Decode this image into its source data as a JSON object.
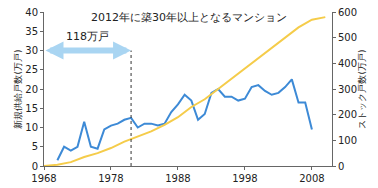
{
  "chart_data": {
    "type": "line",
    "title": "2012年に築30年以上となるマンション",
    "ylabel": "新規供給戸数(万戸)",
    "y2label": "ストック戸数(万戸)",
    "xlim": [
      1968,
      2011
    ],
    "xticks": [
      1968,
      1978,
      1988,
      1998,
      2008
    ],
    "ylim": [
      0,
      40
    ],
    "yticks": [
      0,
      5,
      10,
      15,
      20,
      25,
      30,
      35,
      40
    ],
    "y2lim": [
      0,
      600
    ],
    "y2ticks": [
      0,
      100,
      200,
      300,
      400,
      500,
      600
    ],
    "grid": false,
    "series": [
      {
        "color": "#3d8ad6",
        "axis": "y",
        "x": [
          1970,
          1971,
          1972,
          1973,
          1974,
          1975,
          1976,
          1977,
          1978,
          1979,
          1980,
          1981,
          1982,
          1983,
          1984,
          1985,
          1986,
          1987,
          1988,
          1989,
          1990,
          1991,
          1992,
          1993,
          1994,
          1995,
          1996,
          1997,
          1998,
          1999,
          2000,
          2001,
          2002,
          2003,
          2004,
          2005,
          2006,
          2007,
          2008
        ],
        "values": [
          1.5,
          5,
          4,
          5,
          11.5,
          5,
          4.5,
          9.5,
          10.5,
          11,
          12,
          12.5,
          10,
          11,
          11,
          10.5,
          11,
          14,
          16,
          18.5,
          17,
          12,
          13.5,
          19,
          20,
          18,
          18,
          17,
          17.5,
          20.5,
          21,
          19.5,
          18.5,
          19,
          20.5,
          22.5,
          16.5,
          16.5,
          9.5
        ]
      },
      {
        "color": "#f5cc4a",
        "axis": "y2",
        "x": [
          1968,
          1970,
          1972,
          1974,
          1976,
          1978,
          1980,
          1982,
          1984,
          1986,
          1988,
          1990,
          1992,
          1994,
          1996,
          1998,
          2000,
          2002,
          2004,
          2006,
          2008,
          2010
        ],
        "values": [
          0,
          5,
          15,
          35,
          50,
          70,
          95,
          115,
          135,
          160,
          190,
          230,
          260,
          300,
          340,
          380,
          420,
          460,
          500,
          540,
          570,
          580
        ]
      }
    ],
    "annotations": [
      {
        "text": "118万戸",
        "x_from": 1968,
        "x_to": 1981,
        "y": 30,
        "color": "#a9d5f2",
        "marker": "double_arrow"
      }
    ],
    "vline": {
      "x": 1981,
      "ylim": [
        0,
        30
      ],
      "color": "#333333",
      "line_style": "dot"
    }
  }
}
